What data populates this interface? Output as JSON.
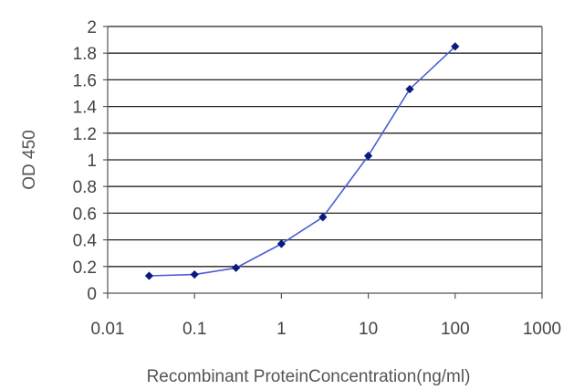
{
  "chart_data": {
    "type": "line",
    "xlabel": "Recombinant ProteinConcentration(ng/ml)",
    "ylabel": "OD 450",
    "xscale": "log",
    "xlim": [
      0.01,
      1000
    ],
    "ylim": [
      0,
      2
    ],
    "grid": "horizontal",
    "x_ticks": [
      "0.01",
      "0.1",
      "1",
      "10",
      "100",
      "1000"
    ],
    "y_ticks": [
      "0",
      "0.2",
      "0.4",
      "0.6",
      "0.8",
      "1",
      "1.2",
      "1.4",
      "1.6",
      "1.8",
      "2"
    ],
    "colors": {
      "line": "#4a5ed0",
      "marker": "#0a1a80",
      "grid": "#222222"
    },
    "series": [
      {
        "x": [
          0.03,
          0.1,
          0.3,
          1,
          3,
          10,
          30,
          100
        ],
        "y": [
          0.13,
          0.14,
          0.19,
          0.37,
          0.57,
          1.03,
          1.53,
          1.85
        ]
      }
    ]
  }
}
